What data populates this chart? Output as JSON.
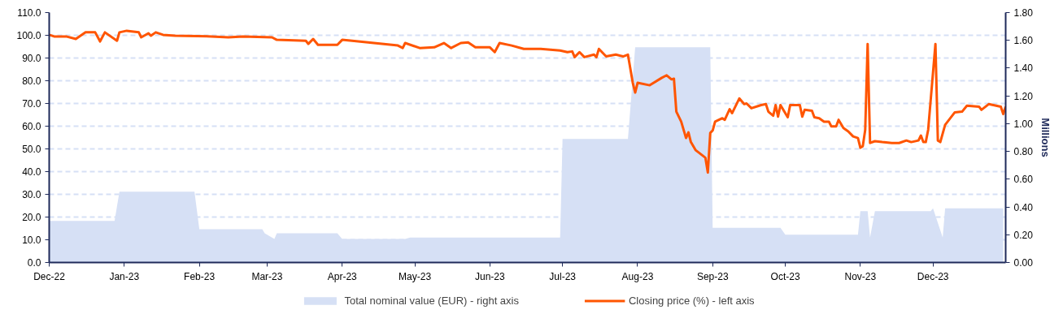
{
  "chart_data": {
    "type": "line",
    "xlim": [
      "2022-12-01",
      "2023-12-31"
    ],
    "xticks": [
      {
        "value": "2022-12-01",
        "label": "Dec-22"
      },
      {
        "value": "2023-01-01",
        "label": "Jan-23"
      },
      {
        "value": "2023-02-01",
        "label": "Feb-23"
      },
      {
        "value": "2023-03-01",
        "label": "Mar-23"
      },
      {
        "value": "2023-04-01",
        "label": "Apr-23"
      },
      {
        "value": "2023-05-01",
        "label": "May-23"
      },
      {
        "value": "2023-06-01",
        "label": "Jun-23"
      },
      {
        "value": "2023-07-01",
        "label": "Jul-23"
      },
      {
        "value": "2023-08-01",
        "label": "Aug-23"
      },
      {
        "value": "2023-09-01",
        "label": "Sep-23"
      },
      {
        "value": "2023-10-01",
        "label": "Oct-23"
      },
      {
        "value": "2023-11-01",
        "label": "Nov-23"
      },
      {
        "value": "2023-12-01",
        "label": "Dec-23"
      }
    ],
    "ylim": [
      0,
      110
    ],
    "yticks": [
      {
        "value": 0,
        "label": "0.0"
      },
      {
        "value": 10,
        "label": "10.0"
      },
      {
        "value": 20,
        "label": "20.0"
      },
      {
        "value": 30,
        "label": "30.0"
      },
      {
        "value": 40,
        "label": "40.0"
      },
      {
        "value": 50,
        "label": "50.0"
      },
      {
        "value": 60,
        "label": "60.0"
      },
      {
        "value": 70,
        "label": "70.0"
      },
      {
        "value": 80,
        "label": "80.0"
      },
      {
        "value": 90,
        "label": "90.0"
      },
      {
        "value": 100,
        "label": "100.0"
      },
      {
        "value": 110,
        "label": "110.0"
      }
    ],
    "y2lim": [
      0,
      1.8
    ],
    "y2ticks": [
      {
        "value": 0,
        "label": "0.00"
      },
      {
        "value": 0.2,
        "label": "0.20"
      },
      {
        "value": 0.4,
        "label": "0.40"
      },
      {
        "value": 0.6,
        "label": "0.60"
      },
      {
        "value": 0.8,
        "label": "0.80"
      },
      {
        "value": 1.0,
        "label": "1.00"
      },
      {
        "value": 1.2,
        "label": "1.20"
      },
      {
        "value": 1.4,
        "label": "1.40"
      },
      {
        "value": 1.6,
        "label": "1.60"
      },
      {
        "value": 1.8,
        "label": "1.80"
      }
    ],
    "y2label": "Millions",
    "grid": "y",
    "legend": "bottom",
    "marker": "none",
    "line_style": "solid",
    "series": [
      {
        "name": "Total nominal value (EUR) - right axis",
        "type": "area",
        "axis": "y2",
        "color": "#d6e0f5",
        "x": [
          "2022-12-01",
          "2022-12-28",
          "2022-12-30",
          "2023-01-30",
          "2023-02-01",
          "2023-02-27",
          "2023-02-28",
          "2023-03-04",
          "2023-03-05",
          "2023-03-30",
          "2023-04-01",
          "2023-04-27",
          "2023-04-29",
          "2023-06-30",
          "2023-07-01",
          "2023-07-28",
          "2023-07-31",
          "2023-08-31",
          "2023-09-01",
          "2023-09-29",
          "2023-10-01",
          "2023-10-31",
          "2023-11-01",
          "2023-11-04",
          "2023-11-05",
          "2023-11-07",
          "2023-11-30",
          "2023-12-01",
          "2023-12-05",
          "2023-12-06",
          "2023-12-30"
        ],
        "values": [
          0.3,
          0.3,
          0.51,
          0.51,
          0.24,
          0.24,
          0.21,
          0.17,
          0.21,
          0.21,
          0.17,
          0.17,
          0.18,
          0.18,
          0.89,
          0.89,
          1.55,
          1.55,
          0.25,
          0.25,
          0.2,
          0.2,
          0.37,
          0.37,
          0.18,
          0.37,
          0.37,
          0.39,
          0.18,
          0.39,
          0.39
        ]
      },
      {
        "name": "Closing price (%) - left axis",
        "axis": "y",
        "color": "#ff5500",
        "x": [
          "2022-12-01",
          "2022-12-03",
          "2022-12-08",
          "2022-12-12",
          "2022-12-16",
          "2022-12-20",
          "2022-12-22",
          "2022-12-24",
          "2022-12-29",
          "2022-12-30",
          "2023-01-02",
          "2023-01-07",
          "2023-01-08",
          "2023-01-11",
          "2023-01-12",
          "2023-01-14",
          "2023-01-17",
          "2023-01-22",
          "2023-02-06",
          "2023-02-13",
          "2023-02-19",
          "2023-03-03",
          "2023-03-05",
          "2023-03-17",
          "2023-03-18",
          "2023-03-20",
          "2023-03-22",
          "2023-03-30",
          "2023-04-01",
          "2023-04-24",
          "2023-04-26",
          "2023-04-27",
          "2023-05-03",
          "2023-05-09",
          "2023-05-13",
          "2023-05-16",
          "2023-05-20",
          "2023-05-23",
          "2023-05-26",
          "2023-06-01",
          "2023-06-03",
          "2023-06-05",
          "2023-06-10",
          "2023-06-15",
          "2023-06-22",
          "2023-06-30",
          "2023-07-03",
          "2023-07-05",
          "2023-07-06",
          "2023-07-08",
          "2023-07-10",
          "2023-07-14",
          "2023-07-15",
          "2023-07-16",
          "2023-07-19",
          "2023-07-23",
          "2023-07-26",
          "2023-07-28",
          "2023-07-30",
          "2023-07-31",
          "2023-08-01",
          "2023-08-06",
          "2023-08-11",
          "2023-08-13",
          "2023-08-15",
          "2023-08-16",
          "2023-08-17",
          "2023-08-19",
          "2023-08-21",
          "2023-08-22",
          "2023-08-23",
          "2023-08-25",
          "2023-08-29",
          "2023-08-30",
          "2023-08-31",
          "2023-09-01",
          "2023-09-02",
          "2023-09-05",
          "2023-09-06",
          "2023-09-08",
          "2023-09-09",
          "2023-09-12",
          "2023-09-14",
          "2023-09-15",
          "2023-09-17",
          "2023-09-21",
          "2023-09-23",
          "2023-09-24",
          "2023-09-26",
          "2023-09-27",
          "2023-09-28",
          "2023-09-29",
          "2023-10-02",
          "2023-10-03",
          "2023-10-07",
          "2023-10-08",
          "2023-10-09",
          "2023-10-12",
          "2023-10-13",
          "2023-10-15",
          "2023-10-17",
          "2023-10-19",
          "2023-10-20",
          "2023-10-22",
          "2023-10-23",
          "2023-10-25",
          "2023-10-27",
          "2023-10-29",
          "2023-10-31",
          "2023-11-01",
          "2023-11-02",
          "2023-11-03",
          "2023-11-04",
          "2023-11-05",
          "2023-11-07",
          "2023-11-10",
          "2023-11-14",
          "2023-11-17",
          "2023-11-20",
          "2023-11-22",
          "2023-11-25",
          "2023-11-26",
          "2023-11-27",
          "2023-11-28",
          "2023-11-29",
          "2023-12-02",
          "2023-12-03",
          "2023-12-04",
          "2023-12-06",
          "2023-12-10",
          "2023-12-13",
          "2023-12-15",
          "2023-12-20",
          "2023-12-21",
          "2023-12-24",
          "2023-12-29",
          "2023-12-30",
          "2023-12-31"
        ],
        "values": [
          100.2,
          99.5,
          99.5,
          98.4,
          101.3,
          101.3,
          97.3,
          101.3,
          97.6,
          101.3,
          102.0,
          101.3,
          99.1,
          100.9,
          99.8,
          101.3,
          100.2,
          99.8,
          99.5,
          99.1,
          99.5,
          99.1,
          98.0,
          97.6,
          96.2,
          98.4,
          95.8,
          95.8,
          98.0,
          95.5,
          94.4,
          96.6,
          94.4,
          94.7,
          96.6,
          94.4,
          96.6,
          96.9,
          94.7,
          94.7,
          92.6,
          96.6,
          95.5,
          94.0,
          94.0,
          93.3,
          92.6,
          92.9,
          90.4,
          92.6,
          90.4,
          91.5,
          90.4,
          94.0,
          90.7,
          91.5,
          90.7,
          91.5,
          79.1,
          74.8,
          79.1,
          78.0,
          81.3,
          82.4,
          80.6,
          80.9,
          66.4,
          62.0,
          54.8,
          57.3,
          53.0,
          49.4,
          46.1,
          39.6,
          57.0,
          58.1,
          62.0,
          63.5,
          62.8,
          67.5,
          65.7,
          72.2,
          69.7,
          70.0,
          67.9,
          69.3,
          69.7,
          66.4,
          64.6,
          69.3,
          64.2,
          69.3,
          63.9,
          69.3,
          69.3,
          64.2,
          67.2,
          66.8,
          63.9,
          63.5,
          62.0,
          62.0,
          59.9,
          59.9,
          62.8,
          59.2,
          57.7,
          55.5,
          54.8,
          50.5,
          51.2,
          58.4,
          96.2,
          52.6,
          53.4,
          53.0,
          52.6,
          52.6,
          53.7,
          53.0,
          53.7,
          55.9,
          53.0,
          53.0,
          58.4,
          96.2,
          53.7,
          53.0,
          60.6,
          66.1,
          66.4,
          69.0,
          68.6,
          67.2,
          69.7,
          68.6,
          65.3,
          68.6
        ]
      }
    ]
  }
}
